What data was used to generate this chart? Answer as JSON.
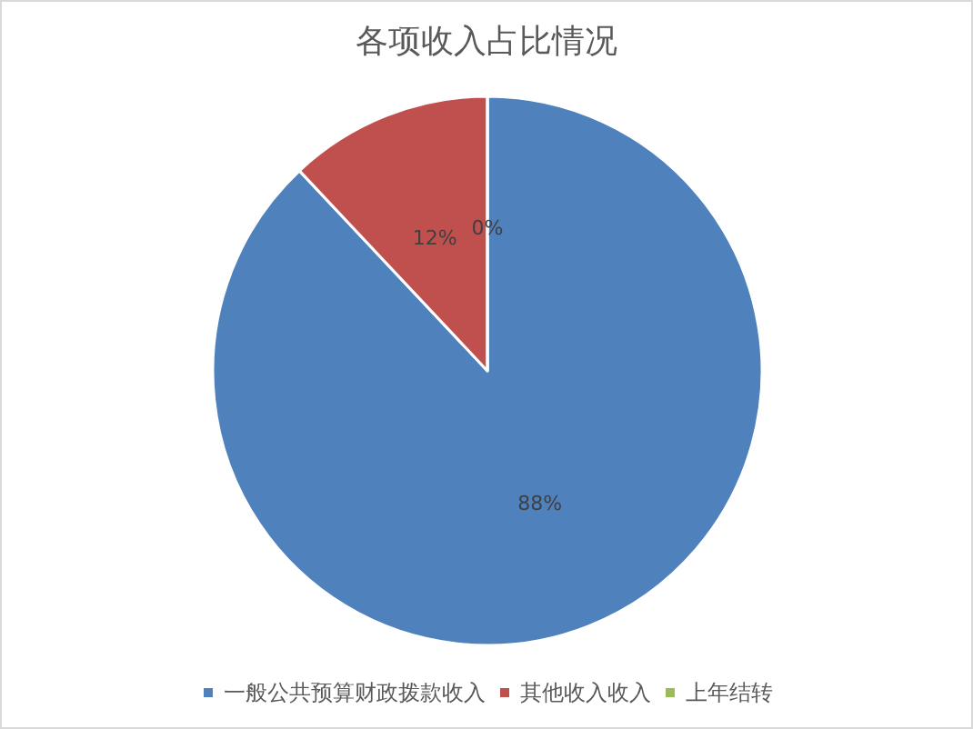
{
  "chart_data": {
    "type": "pie",
    "title": "各项收入占比情况",
    "categories": [
      "一般公共预算财政拨款收入",
      "其他收入收入",
      "上年结转"
    ],
    "values": [
      88,
      12,
      0
    ],
    "colors": [
      "#4f81bd",
      "#c0504d",
      "#9bbb59"
    ],
    "value_labels": [
      "88%",
      "12%",
      "0%"
    ],
    "legend": "bottom"
  }
}
